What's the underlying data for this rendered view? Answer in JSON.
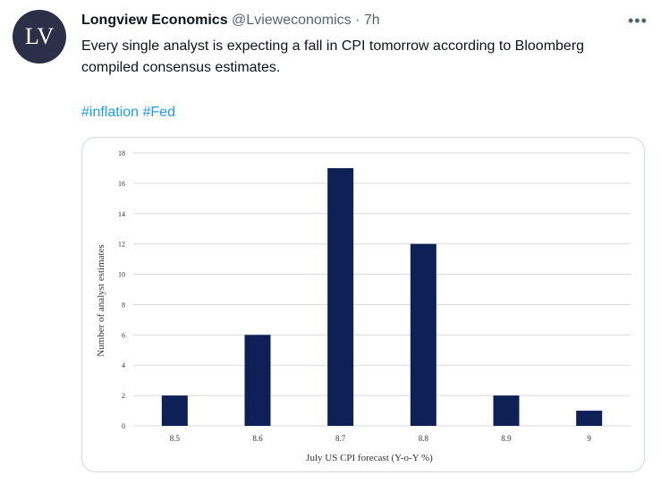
{
  "tweet": {
    "avatar_text": "LV",
    "author_name": "Longview Economics",
    "author_handle": "@Lvieweconomics",
    "separator": "·",
    "timestamp": "7h",
    "more_icon": "more-icon",
    "text": "Every single analyst is expecting a fall in CPI tomorrow according to Bloomberg compiled consensus estimates.",
    "hashtags": [
      "#inflation",
      "#Fed"
    ]
  },
  "colors": {
    "bar": "#0f2057",
    "avatar_bg": "#2b2f48",
    "link": "#1d9bf0",
    "grid": "#d9d9d9"
  },
  "chart_data": {
    "type": "bar",
    "title": "",
    "categories": [
      "8.5",
      "8.6",
      "8.7",
      "8.8",
      "8.9",
      "9"
    ],
    "values": [
      2,
      6,
      17,
      12,
      2,
      1
    ],
    "xlabel": "July US CPI forecast (Y-o-Y %)",
    "ylabel": "Number of analyst estimates",
    "ylim": [
      0,
      18
    ],
    "yticks": [
      0,
      2,
      4,
      6,
      8,
      10,
      12,
      14,
      16,
      18
    ],
    "grid": true,
    "legend": "none"
  }
}
